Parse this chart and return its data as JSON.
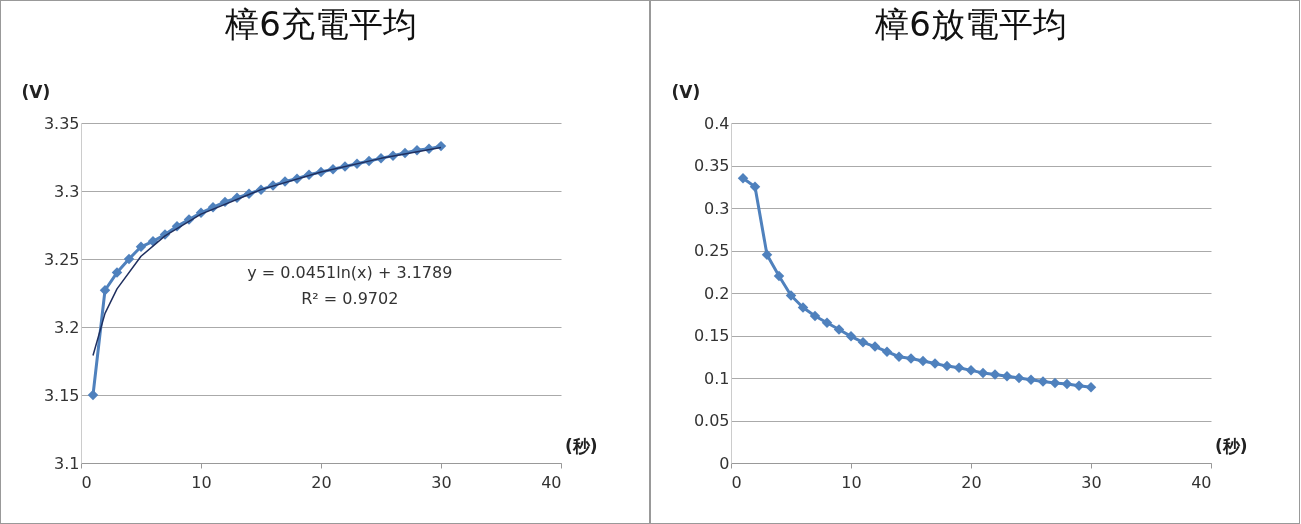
{
  "chart_data": [
    {
      "type": "line",
      "title": "樟6充電平均",
      "xlabel": "(秒)",
      "ylabel": "(V)",
      "xlim": [
        0,
        40
      ],
      "xticks": [
        0,
        10,
        20,
        30,
        40
      ],
      "ylim": [
        3.1,
        3.35
      ],
      "yticks": [
        3.1,
        3.15,
        3.2,
        3.25,
        3.3,
        3.35
      ],
      "grid": "y",
      "marker": "diamond",
      "x": [
        1,
        2,
        3,
        4,
        5,
        6,
        7,
        8,
        9,
        10,
        11,
        12,
        13,
        14,
        15,
        16,
        17,
        18,
        19,
        20,
        21,
        22,
        23,
        24,
        25,
        26,
        27,
        28,
        29,
        30
      ],
      "series": [
        {
          "color": "#4f81bd",
          "values": [
            3.15,
            3.227,
            3.24,
            3.25,
            3.259,
            3.263,
            3.268,
            3.274,
            3.279,
            3.284,
            3.288,
            3.292,
            3.295,
            3.298,
            3.301,
            3.304,
            3.307,
            3.309,
            3.312,
            3.314,
            3.316,
            3.318,
            3.32,
            3.322,
            3.324,
            3.326,
            3.328,
            3.33,
            3.331,
            3.333
          ]
        },
        {
          "type": "line",
          "marker": "none",
          "color": "#1f2f5f",
          "x": [
            1,
            2,
            3,
            5,
            7,
            10,
            15,
            20,
            25,
            30
          ],
          "values": [
            3.179,
            3.21,
            3.228,
            3.252,
            3.267,
            3.283,
            3.301,
            3.314,
            3.324,
            3.332
          ]
        }
      ],
      "annotations": [
        "y = 0.0451ln(x) + 3.1789",
        "R² = 0.9702"
      ]
    },
    {
      "type": "line",
      "title": "樟6放電平均",
      "xlabel": "(秒)",
      "ylabel": "(V)",
      "xlim": [
        0,
        40
      ],
      "xticks": [
        0,
        10,
        20,
        30,
        40
      ],
      "ylim": [
        0,
        0.4
      ],
      "yticks": [
        0,
        0.05,
        0.1,
        0.15,
        0.2,
        0.25,
        0.3,
        0.35,
        0.4
      ],
      "grid": "y",
      "marker": "diamond",
      "x": [
        1,
        2,
        3,
        4,
        5,
        6,
        7,
        8,
        9,
        10,
        11,
        12,
        13,
        14,
        15,
        16,
        17,
        18,
        19,
        20,
        21,
        22,
        23,
        24,
        25,
        26,
        27,
        28,
        29,
        30
      ],
      "series": [
        {
          "color": "#4f81bd",
          "values": [
            0.335,
            0.325,
            0.245,
            0.22,
            0.197,
            0.183,
            0.173,
            0.165,
            0.157,
            0.149,
            0.142,
            0.137,
            0.131,
            0.125,
            0.123,
            0.12,
            0.117,
            0.114,
            0.112,
            0.109,
            0.106,
            0.104,
            0.102,
            0.1,
            0.098,
            0.096,
            0.094,
            0.093,
            0.091,
            0.089
          ]
        }
      ]
    }
  ]
}
